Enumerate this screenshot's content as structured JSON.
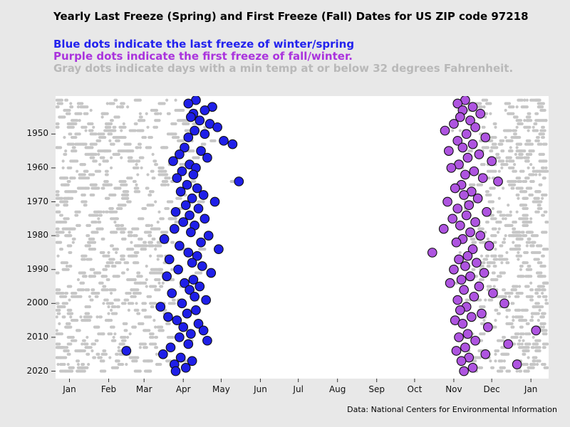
{
  "page": {
    "title": "Yearly Last Freeze (Spring) and First Freeze (Fall) Dates for US ZIP code 97218",
    "legend_blue": {
      "text": "Blue dots indicate the last freeze of winter/spring",
      "color": "#2222ee"
    },
    "legend_purple": {
      "text": "Purple dots indicate the first freeze of fall/winter.",
      "color": "#aa33dd"
    },
    "legend_gray": {
      "text": "Gray dots indicate days with a min temp at or below 32 degrees Fahrenheit.",
      "color": "#b9b9b9"
    },
    "footer": "Data: National Centers for Environmental Information"
  },
  "chart_data": {
    "type": "scatter",
    "title": "Yearly Last Freeze (Spring) and First Freeze (Fall) Dates for US ZIP code 97218",
    "xlabel": "",
    "ylabel": "",
    "plot_bg": "#ffffff",
    "figure_bg": "#e8e8e8",
    "x_tick_labels": [
      "Jan",
      "Feb",
      "Mar",
      "Apr",
      "May",
      "Jun",
      "Jul",
      "Aug",
      "Sep",
      "Oct",
      "Nov",
      "Dec",
      "Jan"
    ],
    "x_tick_doy": [
      1,
      32,
      60,
      91,
      121,
      152,
      182,
      213,
      244,
      274,
      305,
      335,
      366
    ],
    "x_range_doy": [
      -10,
      380
    ],
    "y_tick_years": [
      1950,
      1960,
      1970,
      1980,
      1990,
      2000,
      2010,
      2020
    ],
    "y_range_years": [
      1938.8,
      2022.2
    ],
    "year_start": 1940,
    "year_end": 2020,
    "legend_position": "above-plot",
    "grid": false,
    "series": [
      {
        "name": "last_freeze_spring",
        "label": "Blue dots indicate the last freeze of winter/spring",
        "color": "#1f1fe8",
        "edge_color": "#101010",
        "marker_radius": 6.3,
        "doy": [
          101,
          95,
          114,
          108,
          99,
          97,
          104,
          112,
          118,
          100,
          108,
          95,
          123,
          130,
          92,
          105,
          88,
          110,
          83,
          96,
          101,
          90,
          99,
          86,
          135,
          94,
          102,
          89,
          107,
          98,
          116,
          93,
          103,
          85,
          96,
          108,
          91,
          100,
          84,
          97,
          111,
          76,
          105,
          88,
          119,
          95,
          102,
          80,
          98,
          106,
          87,
          113,
          78,
          99,
          92,
          104,
          96,
          82,
          100,
          109,
          90,
          73,
          101,
          94,
          79,
          86,
          103,
          91,
          107,
          97,
          88,
          110,
          95,
          81,
          46,
          75,
          89,
          98,
          84,
          93,
          85
        ]
      },
      {
        "name": "first_freeze_fall",
        "label": "Purple dots indicate the first freeze of fall/winter.",
        "color": "#ae54e0",
        "edge_color": "#101010",
        "marker_radius": 6.3,
        "doy": [
          314,
          308,
          320,
          312,
          326,
          310,
          318,
          305,
          322,
          298,
          315,
          330,
          308,
          320,
          312,
          301,
          325,
          316,
          335,
          309,
          303,
          321,
          314,
          328,
          340,
          311,
          306,
          319,
          313,
          324,
          300,
          317,
          308,
          331,
          315,
          304,
          322,
          310,
          297,
          318,
          326,
          312,
          307,
          333,
          320,
          288,
          316,
          309,
          323,
          314,
          305,
          329,
          318,
          311,
          302,
          325,
          313,
          336,
          321,
          308,
          345,
          315,
          310,
          327,
          319,
          306,
          312,
          332,
          370,
          316,
          309,
          322,
          348,
          314,
          307,
          330,
          317,
          311,
          355,
          320,
          313
        ]
      },
      {
        "name": "freeze_days_gray",
        "label": "Gray dots indicate days with a min temp at or below 32 degrees Fahrenheit.",
        "color": "#c6c6c6",
        "marker_radius": 2.1,
        "generated": true,
        "seed": 23,
        "spring_runs_min": 6,
        "spring_runs_max": 12,
        "spring_run_len_max": 5,
        "fall_runs_min": 5,
        "fall_runs_max": 10,
        "fall_run_len_max": 4,
        "doy_min": -9,
        "doy_max": 379
      }
    ]
  }
}
